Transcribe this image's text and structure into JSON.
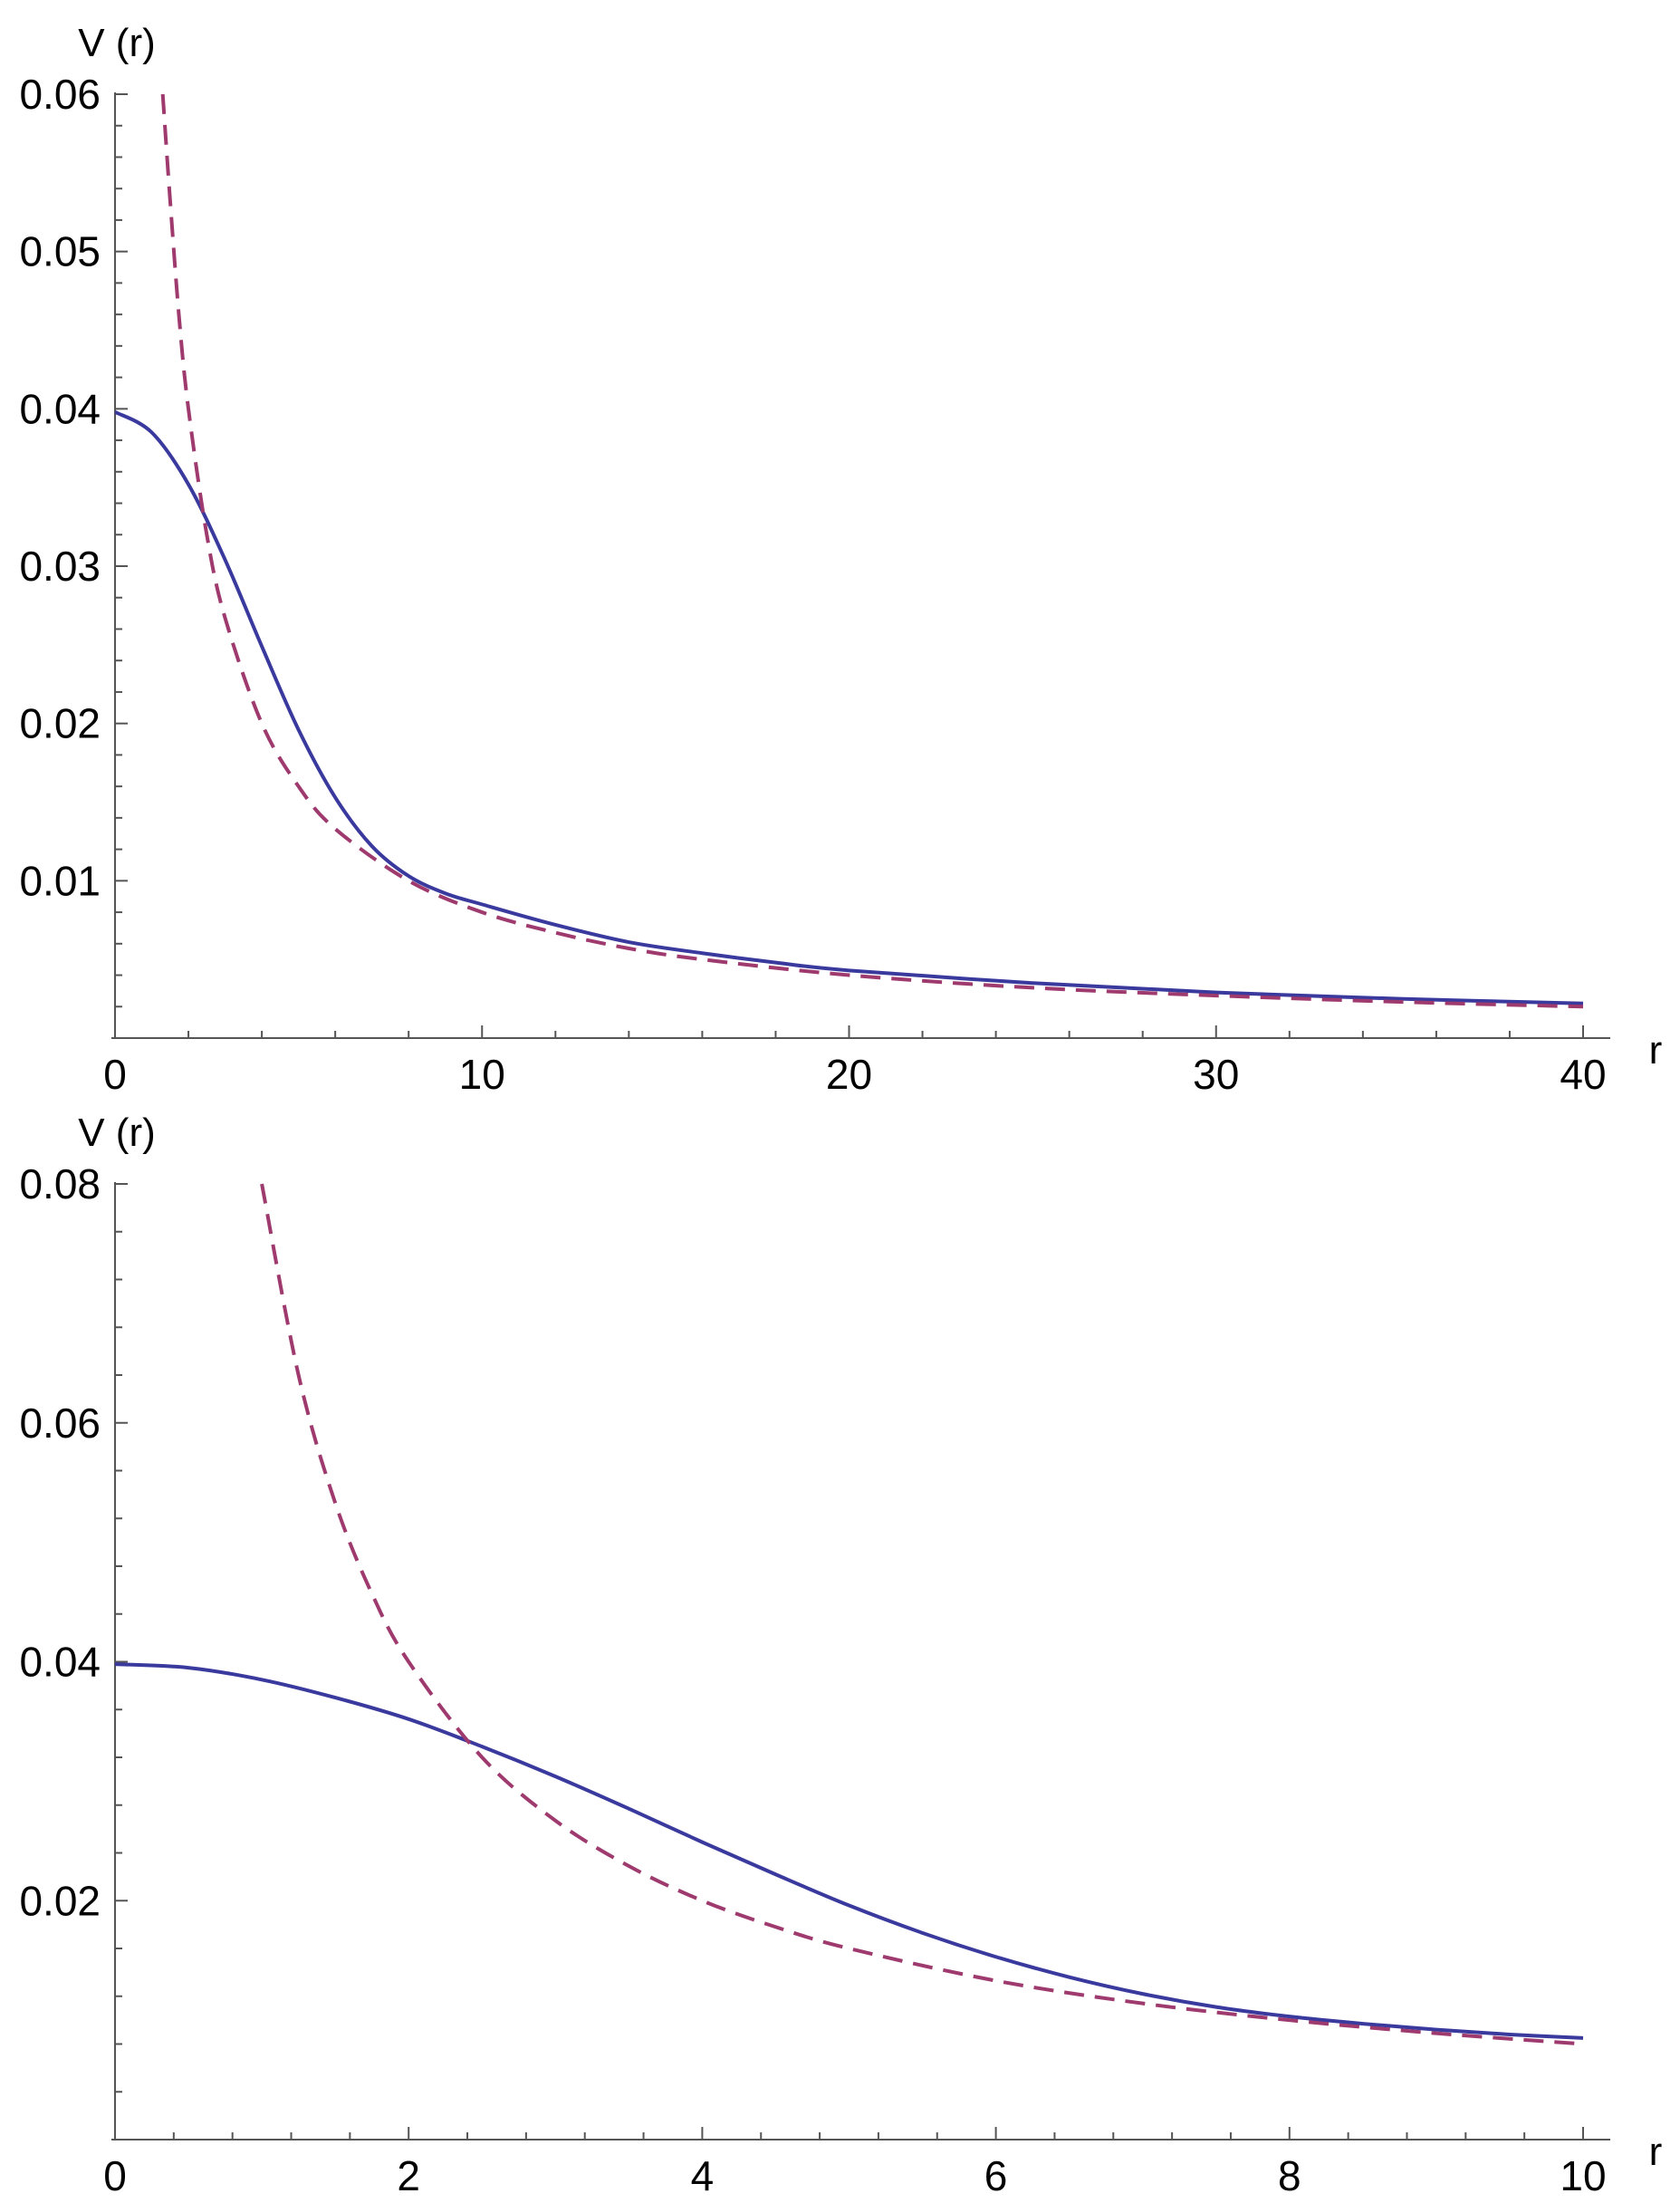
{
  "chart_data": [
    {
      "type": "line",
      "title": "",
      "xlabel": "r",
      "ylabel": "V (r)",
      "xlim": [
        0,
        40
      ],
      "ylim": [
        0,
        0.06
      ],
      "x_ticks": [
        0,
        10,
        20,
        30,
        40
      ],
      "x_tick_labels": [
        "0",
        "10",
        "20",
        "30",
        "40"
      ],
      "y_ticks": [
        0.01,
        0.02,
        0.03,
        0.04,
        0.05,
        0.06
      ],
      "y_tick_labels": [
        "0.01",
        "0.02",
        "0.03",
        "0.04",
        "0.05",
        "0.06"
      ],
      "grid": false,
      "legend": "none",
      "series": [
        {
          "style": "solid",
          "color": "#3a3a9e",
          "x": [
            0,
            1,
            2,
            3,
            4,
            5,
            6,
            7,
            8,
            9,
            10,
            12,
            14,
            16,
            18,
            20,
            25,
            30,
            35,
            40
          ],
          "y": [
            0.0398,
            0.0385,
            0.0352,
            0.0304,
            0.0249,
            0.0196,
            0.0153,
            0.0122,
            0.0103,
            0.0092,
            0.0085,
            0.0072,
            0.0061,
            0.0054,
            0.0048,
            0.0043,
            0.0035,
            0.0029,
            0.0025,
            0.0022
          ]
        },
        {
          "style": "dashed",
          "color": "#9e3a6e",
          "x": [
            1.3,
            1.5,
            1.75,
            2,
            2.5,
            3,
            4,
            5,
            6,
            8,
            10,
            12,
            14,
            16,
            20,
            25,
            30,
            35,
            40
          ],
          "y": [
            0.06,
            0.0533,
            0.0457,
            0.04,
            0.032,
            0.0267,
            0.02,
            0.016,
            0.0133,
            0.01,
            0.008,
            0.0067,
            0.0057,
            0.005,
            0.004,
            0.0032,
            0.0027,
            0.0023,
            0.002
          ]
        }
      ]
    },
    {
      "type": "line",
      "title": "",
      "xlabel": "r",
      "ylabel": "V (r)",
      "xlim": [
        0,
        10
      ],
      "ylim": [
        0,
        0.08
      ],
      "x_ticks": [
        0,
        2,
        4,
        6,
        8,
        10
      ],
      "x_tick_labels": [
        "0",
        "2",
        "4",
        "6",
        "8",
        "10"
      ],
      "y_ticks": [
        0.02,
        0.04,
        0.06,
        0.08
      ],
      "y_tick_labels": [
        "0.02",
        "0.04",
        "0.06",
        "0.08"
      ],
      "grid": false,
      "legend": "none",
      "series": [
        {
          "style": "solid",
          "color": "#3a3a9e",
          "x": [
            0,
            0.5,
            1,
            1.5,
            2,
            2.5,
            3,
            3.5,
            4,
            4.5,
            5,
            5.5,
            6,
            6.5,
            7,
            7.5,
            8,
            8.5,
            9,
            9.5,
            10
          ],
          "y": [
            0.0398,
            0.0395,
            0.0385,
            0.037,
            0.0352,
            0.0329,
            0.0304,
            0.0277,
            0.0249,
            0.0222,
            0.0196,
            0.0173,
            0.0153,
            0.0136,
            0.0122,
            0.0111,
            0.0103,
            0.0097,
            0.0092,
            0.0088,
            0.0085
          ]
        },
        {
          "style": "dashed",
          "color": "#9e3a6e",
          "x": [
            1,
            1.25,
            1.5,
            1.75,
            2,
            2.5,
            3,
            3.5,
            4,
            4.5,
            5,
            6,
            7,
            8,
            9,
            10
          ],
          "y": [
            0.08,
            0.064,
            0.0533,
            0.0457,
            0.04,
            0.032,
            0.0267,
            0.0229,
            0.02,
            0.0178,
            0.016,
            0.0133,
            0.0114,
            0.01,
            0.0089,
            0.008
          ]
        }
      ]
    }
  ]
}
